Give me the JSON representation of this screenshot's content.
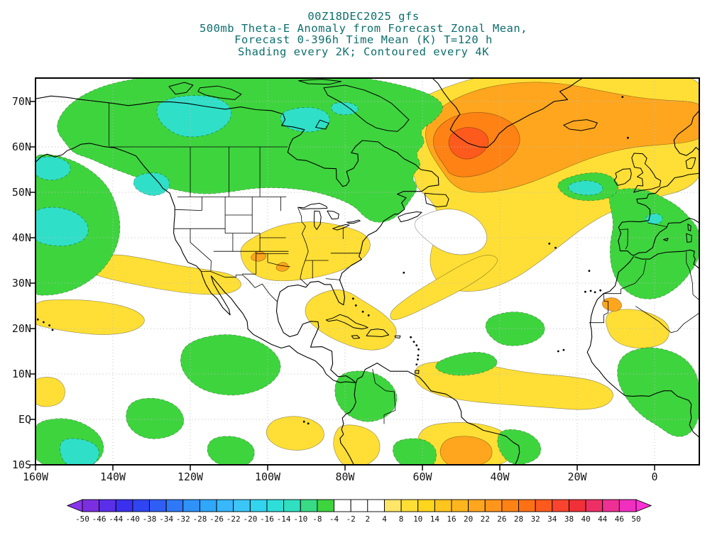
{
  "title": {
    "line1": "00Z18DEC2025 gfs",
    "line2": "500mb Theta-E Anomaly from Forecast Zonal Mean,",
    "line3": "Forecast 0-396h Time Mean (K) T=120 h",
    "line4": "Shading every 2K; Contoured every 4K"
  },
  "map": {
    "lat_labels": [
      "70N",
      "60N",
      "50N",
      "40N",
      "30N",
      "20N",
      "10N",
      "EQ",
      "10S"
    ],
    "lon_labels": [
      "160W",
      "140W",
      "120W",
      "100W",
      "80W",
      "60W",
      "40W",
      "20W",
      "0"
    ]
  },
  "colorbar": {
    "labels": [
      "-50",
      "-46",
      "-44",
      "-40",
      "-38",
      "-34",
      "-32",
      "-28",
      "-26",
      "-22",
      "-20",
      "-16",
      "-14",
      "-10",
      "-8",
      "-4",
      "-2",
      "2",
      "4",
      "8",
      "10",
      "14",
      "16",
      "20",
      "22",
      "26",
      "28",
      "32",
      "34",
      "38",
      "40",
      "44",
      "46",
      "50"
    ],
    "segment_colors": [
      "#7b2fe0",
      "#5a2fe8",
      "#3b30ee",
      "#2f45f2",
      "#2f5ef5",
      "#2f78f7",
      "#2f92f9",
      "#2fa7fa",
      "#38b7fb",
      "#3cc6f8",
      "#32d4ee",
      "#2edfd9",
      "#30dfc0",
      "#38da85",
      "#3ed43e",
      "#ffffff",
      "#ffffff",
      "#ffffff",
      "#ffe668",
      "#ffdf35",
      "#ffd51e",
      "#ffc51e",
      "#ffb61e",
      "#ffa61e",
      "#ff961c",
      "#ff8215",
      "#ff7015",
      "#ff5a1e",
      "#fa4430",
      "#f03038",
      "#ee2f66",
      "#ee2f93",
      "#f02fc0"
    ],
    "arrow_left_color": "#8a33ee",
    "arrow_right_color": "#ff30d8"
  },
  "colors": {
    "title_text": "#0d6e6e",
    "axis_text": "#151515",
    "grid": "#bdbdbd",
    "coast": "#000000",
    "border": "#000000",
    "green": "#3ed43e",
    "cyan": "#30dfc8",
    "yellow": "#ffdf35",
    "orange": "#ffa61e",
    "deep_orange": "#ff8215",
    "red_orange": "#ff5a1e",
    "white": "#ffffff"
  }
}
